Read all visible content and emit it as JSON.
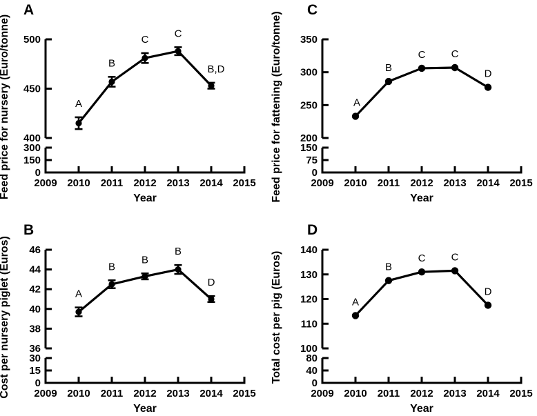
{
  "figure": {
    "background_color": "#ffffff",
    "ink_color": "#000000",
    "panels_order": [
      "A",
      "C",
      "B",
      "D"
    ]
  },
  "chart_data": [
    {
      "type": "line",
      "panel": "A",
      "ylabel": "Feed price for nursery (Euro/tonne)",
      "xlabel": "Year",
      "x_ticks": [
        2009,
        2010,
        2011,
        2012,
        2013,
        2014,
        2015
      ],
      "x": [
        2010,
        2011,
        2012,
        2013,
        2014
      ],
      "values": [
        415,
        457,
        481,
        488,
        453
      ],
      "errors": [
        6,
        5,
        5,
        4,
        3
      ],
      "point_labels": [
        "A",
        "B",
        "C",
        "C",
        "B,D"
      ],
      "y_upper_ticks": [
        400,
        450,
        500
      ],
      "y_lower_ticks": [
        0,
        150,
        300
      ],
      "y_axis_break": true,
      "marker": "filled-circle",
      "series_color": "#000000",
      "legend": null
    },
    {
      "type": "line",
      "panel": "C",
      "ylabel": "Feed price for fattening (Euro/tonne)",
      "xlabel": "Year",
      "x_ticks": [
        2009,
        2010,
        2011,
        2012,
        2013,
        2014,
        2015
      ],
      "x": [
        2010,
        2011,
        2012,
        2013,
        2014
      ],
      "values": [
        233,
        286,
        306,
        307,
        277
      ],
      "errors": null,
      "point_labels": [
        "A",
        "B",
        "C",
        "C",
        "D"
      ],
      "y_upper_ticks": [
        200,
        250,
        300,
        350
      ],
      "y_lower_ticks": [
        0,
        75,
        150
      ],
      "y_axis_break": true,
      "marker": "filled-circle",
      "series_color": "#000000",
      "legend": null
    },
    {
      "type": "line",
      "panel": "B",
      "ylabel": "Cost per nursery piglet (Euros)",
      "xlabel": "Year",
      "x_ticks": [
        2009,
        2010,
        2011,
        2012,
        2013,
        2014,
        2015
      ],
      "x": [
        2010,
        2011,
        2012,
        2013,
        2014
      ],
      "values": [
        39.7,
        42.5,
        43.3,
        44.0,
        41.0
      ],
      "errors": [
        0.45,
        0.4,
        0.3,
        0.45,
        0.3
      ],
      "point_labels": [
        "A",
        "B",
        "B",
        "B",
        "D"
      ],
      "y_upper_ticks": [
        36,
        38,
        40,
        42,
        44,
        46
      ],
      "y_lower_ticks": [
        0,
        15,
        30
      ],
      "y_axis_break": true,
      "marker": "filled-circle",
      "series_color": "#000000",
      "legend": null
    },
    {
      "type": "line",
      "panel": "D",
      "ylabel": "Total cost per pig (Euros)",
      "xlabel": "Year",
      "x_ticks": [
        2009,
        2010,
        2011,
        2012,
        2013,
        2014,
        2015
      ],
      "x": [
        2010,
        2011,
        2012,
        2013,
        2014
      ],
      "values": [
        113.3,
        127.5,
        131,
        131.5,
        117.5
      ],
      "errors": null,
      "point_labels": [
        "A",
        "B",
        "C",
        "C",
        "D"
      ],
      "y_upper_ticks": [
        100,
        110,
        120,
        130,
        140
      ],
      "y_lower_ticks": [
        0,
        40,
        80
      ],
      "y_axis_break": true,
      "marker": "filled-circle",
      "series_color": "#000000",
      "legend": null
    }
  ]
}
